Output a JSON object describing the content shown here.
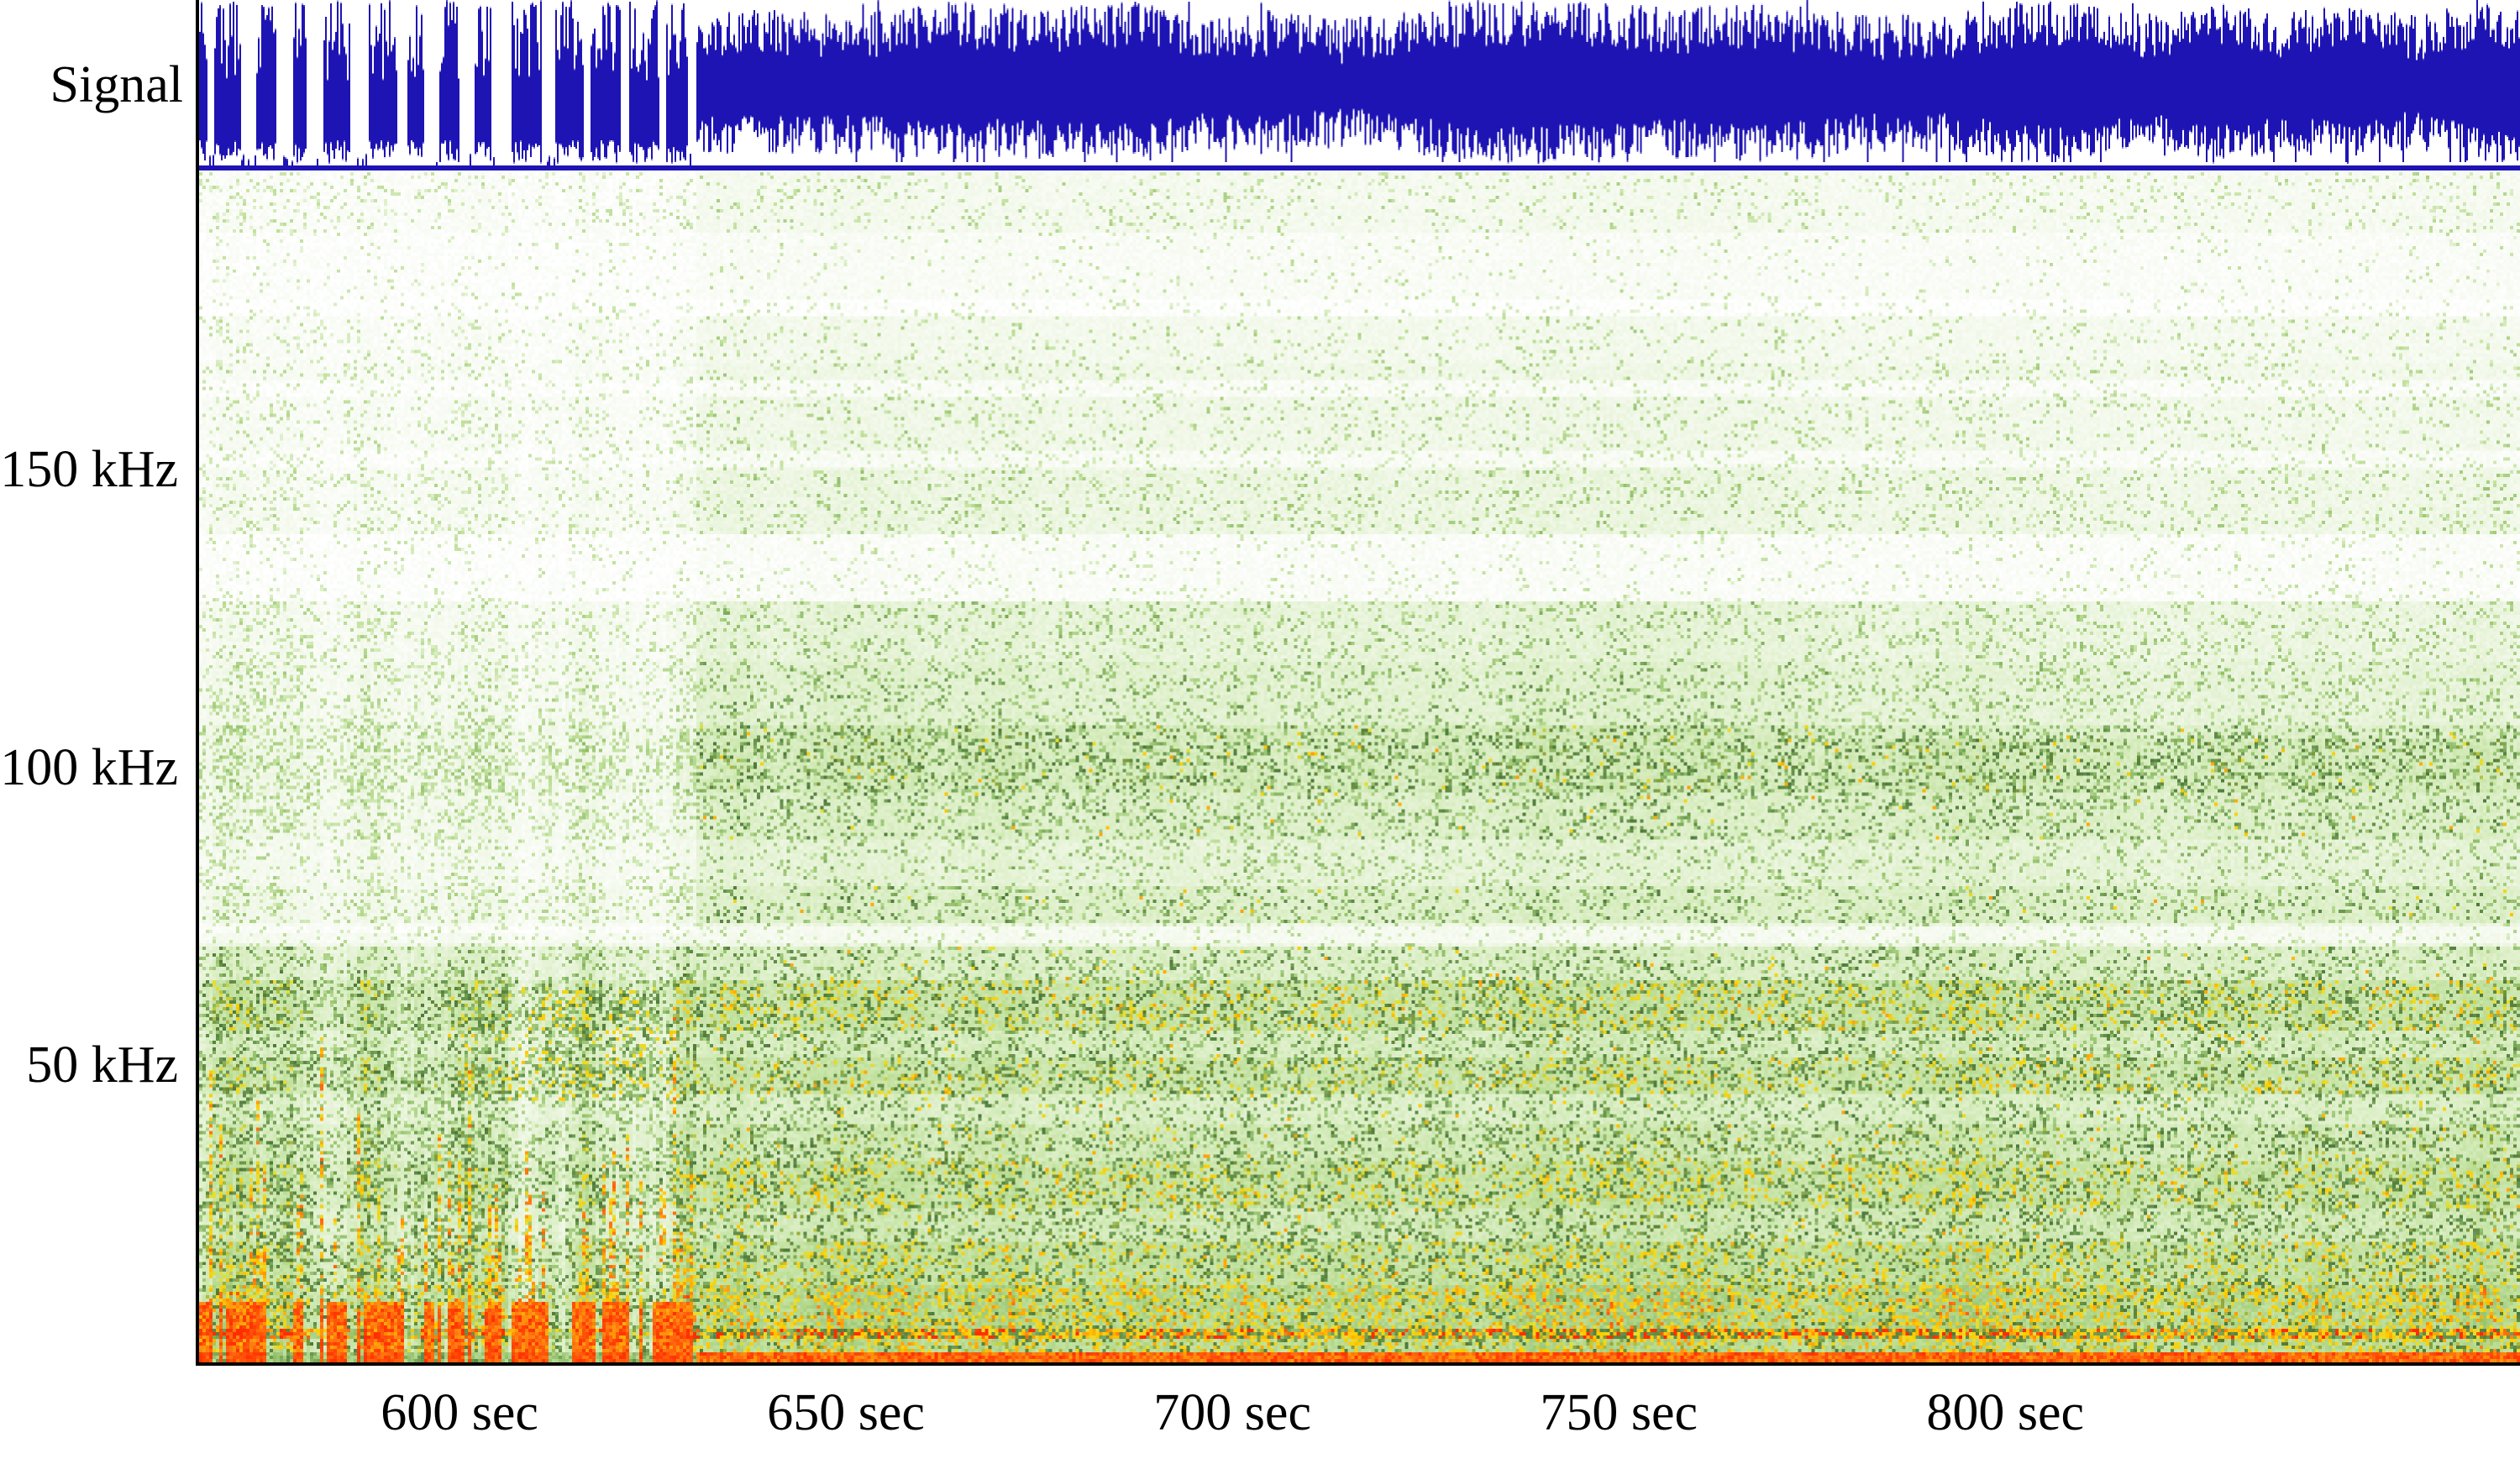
{
  "labels": {
    "signal": "Signal"
  },
  "style": {
    "background": "#ffffff",
    "border_color": "#000000",
    "text_color": "#000000"
  },
  "chart_data": {
    "type": "heatmap",
    "subtype": "audio-spectrogram-with-amplitude-waveform",
    "title": "",
    "x_axis": {
      "unit": "sec",
      "range_sec": [
        566.3,
        866.6
      ],
      "ticks": [
        {
          "value": 600,
          "label": "600 sec"
        },
        {
          "value": 650,
          "label": "650 sec"
        },
        {
          "value": 700,
          "label": "700 sec"
        },
        {
          "value": 750,
          "label": "750 sec"
        },
        {
          "value": 800,
          "label": "800 sec"
        }
      ]
    },
    "y_axis": {
      "unit": "kHz",
      "range_khz": [
        0,
        200
      ],
      "ticks": [
        {
          "value": 150,
          "label": "150 kHz"
        },
        {
          "value": 100,
          "label": "100 kHz"
        },
        {
          "value": 50,
          "label": "50 kHz"
        }
      ]
    },
    "waveform": {
      "color": "#1e14b4",
      "baseline_color": "#1e14b4",
      "burst_region_end_sec": 630.5,
      "description": "dense symmetric blue amplitude envelope; bursty blocks with silent gaps before ~630 s, continuous noisy envelope with sparse full-height spikes after"
    },
    "spectrogram": {
      "transition_sec": 630.5,
      "clean_upper_after_sec": 777,
      "colormap_stops": [
        [
          0.0,
          "#ffffff"
        ],
        [
          0.15,
          "#f1f8e8"
        ],
        [
          0.3,
          "#dcefc6"
        ],
        [
          0.45,
          "#bfe09a"
        ],
        [
          0.6,
          "#93c06c"
        ],
        [
          0.72,
          "#4e7a3c"
        ],
        [
          0.8,
          "#e6df38"
        ],
        [
          0.86,
          "#ffcc00"
        ],
        [
          0.93,
          "#ff7711"
        ],
        [
          1.0,
          "#ff2d00"
        ]
      ],
      "bands_khz": [
        [
          190,
          200,
          0.11,
          0.2,
          0
        ],
        [
          178,
          190,
          0.06,
          0.1,
          0
        ],
        [
          168,
          178,
          0.12,
          0.16,
          0
        ],
        [
          150,
          168,
          0.15,
          0.22,
          0
        ],
        [
          139,
          150,
          0.18,
          0.26,
          0
        ],
        [
          128,
          139,
          0.11,
          0.14,
          0
        ],
        [
          118,
          128,
          0.22,
          0.3,
          0
        ],
        [
          107,
          118,
          0.26,
          0.36,
          0
        ],
        [
          96,
          107,
          0.34,
          0.58,
          0.012
        ],
        [
          88,
          96,
          0.29,
          0.45,
          0.005
        ],
        [
          80,
          88,
          0.23,
          0.3,
          0
        ],
        [
          74,
          80,
          0.29,
          0.4,
          0.005
        ],
        [
          70,
          74,
          0.18,
          0.2,
          0
        ],
        [
          64,
          70,
          0.3,
          0.42,
          0.01
        ],
        [
          56,
          64,
          0.41,
          0.62,
          0.06
        ],
        [
          51,
          56,
          0.33,
          0.46,
          0.02
        ],
        [
          45,
          51,
          0.4,
          0.6,
          0.05
        ],
        [
          40,
          45,
          0.3,
          0.42,
          0.01
        ],
        [
          34,
          40,
          0.36,
          0.52,
          0.02
        ],
        [
          26,
          34,
          0.42,
          0.62,
          0.06
        ],
        [
          20,
          26,
          0.36,
          0.52,
          0.02
        ],
        [
          13,
          20,
          0.44,
          0.62,
          0.04
        ],
        [
          5.5,
          13,
          0.5,
          0.72,
          0.1
        ],
        [
          4,
          5.5,
          0.68,
          0.85,
          0.35
        ],
        [
          1.6,
          4,
          0.48,
          0.62,
          0.08
        ],
        [
          0,
          1.6,
          0.95,
          1.0,
          0
        ]
      ],
      "white_stripes_khz": [
        [
          176,
          178.5,
          0.1
        ],
        [
          162.5,
          165,
          0.09
        ],
        [
          150.5,
          153,
          0.08
        ],
        [
          128,
          139,
          0.06
        ],
        [
          70.5,
          73.5,
          0.08
        ]
      ],
      "features": [
        "red vertical streaks and solid red bottom bursts before ~630 s",
        "yellow speckle patch cluster 45-62 kHz around 598-629 s",
        "dark green speckled horizontal band near 100 kHz after ~635 s",
        "yellow-speckled dark bands near 57, 48, 30, 16 and 5-13 kHz",
        "orange speckle line near 4-5.5 kHz",
        "solid orange-red line at 0-1.5 kHz along bottom edge"
      ]
    },
    "seed": 1337
  }
}
